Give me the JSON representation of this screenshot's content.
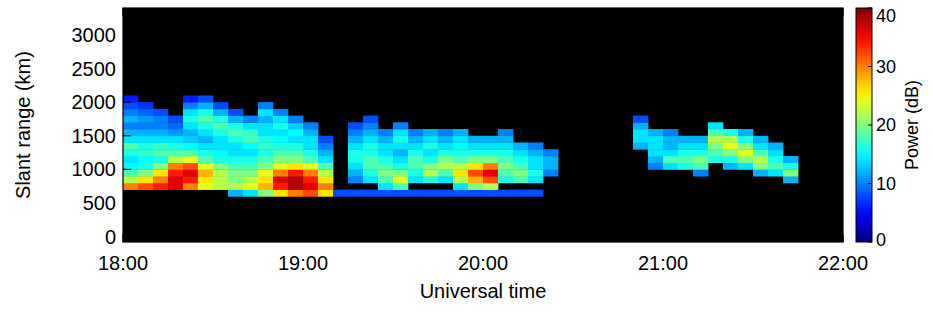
{
  "chart_data": {
    "type": "heatmap",
    "xlabel": "Universal time",
    "ylabel": "Slant range (km)",
    "zlabel": "Power (dB)",
    "xlim": [
      1080,
      1320
    ],
    "xticks": [
      {
        "value": 1080,
        "label": "18:00"
      },
      {
        "value": 1140,
        "label": "19:00"
      },
      {
        "value": 1200,
        "label": "20:00"
      },
      {
        "value": 1260,
        "label": "21:00"
      },
      {
        "value": 1320,
        "label": "22:00"
      }
    ],
    "ylim": [
      -80,
      3400
    ],
    "yticks": [
      0,
      500,
      1000,
      1500,
      2000,
      2500,
      3000
    ],
    "zlim": [
      0,
      40
    ],
    "zticks": [
      0,
      10,
      20,
      30,
      40
    ],
    "x_edges": [
      1080,
      1085,
      1090,
      1095,
      1100,
      1105,
      1110,
      1115,
      1120,
      1125,
      1130,
      1135,
      1140,
      1145,
      1150,
      1155,
      1160,
      1165,
      1170,
      1175,
      1180,
      1185,
      1190,
      1195,
      1200,
      1205,
      1210,
      1215,
      1220,
      1225,
      1230,
      1235,
      1240,
      1245,
      1250,
      1255,
      1260,
      1265,
      1270,
      1275,
      1280,
      1285,
      1290,
      1295,
      1300,
      1305,
      1310,
      1315,
      1320
    ],
    "y_edges": [
      200,
      300,
      400,
      500,
      600,
      700,
      800,
      900,
      1000,
      1100,
      1200,
      1300,
      1400,
      1500,
      1600,
      1700,
      1800,
      1900,
      2000,
      2100,
      2200,
      2300
    ],
    "z": [
      [
        null,
        null,
        null,
        null,
        null,
        30,
        22,
        18,
        15,
        14,
        16,
        18,
        14,
        12,
        10,
        12,
        10,
        8,
        6,
        null,
        null
      ],
      [
        null,
        null,
        null,
        null,
        null,
        32,
        26,
        20,
        16,
        15,
        17,
        16,
        14,
        12,
        10,
        11,
        9,
        7,
        null,
        null,
        null
      ],
      [
        null,
        null,
        null,
        null,
        null,
        34,
        30,
        26,
        20,
        16,
        18,
        17,
        14,
        12,
        10,
        10,
        8,
        null,
        null,
        null,
        null
      ],
      [
        null,
        null,
        null,
        null,
        null,
        36,
        36,
        34,
        30,
        22,
        18,
        16,
        14,
        11,
        9,
        8,
        null,
        null,
        null,
        null,
        null
      ],
      [
        null,
        null,
        null,
        null,
        null,
        30,
        34,
        36,
        32,
        24,
        18,
        15,
        13,
        12,
        14,
        16,
        14,
        10,
        6,
        null,
        null
      ],
      [
        null,
        null,
        null,
        null,
        null,
        24,
        26,
        28,
        24,
        18,
        16,
        14,
        12,
        14,
        16,
        18,
        16,
        12,
        8,
        null,
        null
      ],
      [
        null,
        null,
        null,
        null,
        null,
        22,
        22,
        22,
        20,
        16,
        15,
        14,
        14,
        16,
        18,
        16,
        12,
        8,
        null,
        null,
        null
      ],
      [
        null,
        null,
        null,
        null,
        12,
        22,
        20,
        20,
        18,
        16,
        14,
        14,
        16,
        18,
        16,
        12,
        8,
        null,
        null,
        null,
        null
      ],
      [
        null,
        null,
        null,
        null,
        14,
        24,
        22,
        20,
        18,
        16,
        14,
        15,
        18,
        17,
        14,
        10,
        null,
        null,
        null,
        null,
        null
      ],
      [
        null,
        null,
        null,
        null,
        20,
        28,
        26,
        24,
        20,
        18,
        16,
        17,
        16,
        14,
        14,
        12,
        14,
        10,
        null,
        null,
        null
      ],
      [
        null,
        null,
        null,
        null,
        26,
        34,
        36,
        30,
        24,
        20,
        18,
        16,
        15,
        14,
        16,
        14,
        10,
        null,
        null,
        null,
        null
      ],
      [
        null,
        null,
        null,
        null,
        30,
        38,
        38,
        34,
        26,
        20,
        18,
        16,
        14,
        15,
        13,
        10,
        null,
        null,
        null,
        null,
        null
      ],
      [
        null,
        null,
        null,
        null,
        32,
        36,
        34,
        30,
        24,
        18,
        16,
        14,
        14,
        12,
        10,
        null,
        null,
        null,
        null,
        null,
        null
      ],
      [
        null,
        null,
        null,
        null,
        26,
        30,
        26,
        22,
        18,
        14,
        12,
        10,
        8,
        null,
        null,
        null,
        null,
        null,
        null,
        null,
        null
      ],
      [
        null,
        null,
        null,
        null,
        8,
        null,
        null,
        null,
        null,
        null,
        null,
        null,
        null,
        null,
        null,
        null,
        null,
        null,
        null,
        null,
        null
      ],
      [
        null,
        null,
        null,
        null,
        8,
        null,
        10,
        12,
        14,
        16,
        16,
        14,
        12,
        10,
        8,
        null,
        null,
        null,
        null,
        null,
        null
      ],
      [
        null,
        null,
        null,
        null,
        8,
        null,
        14,
        16,
        18,
        18,
        16,
        16,
        14,
        12,
        10,
        8,
        null,
        null,
        null,
        null,
        null
      ],
      [
        null,
        null,
        null,
        null,
        8,
        14,
        18,
        20,
        18,
        16,
        14,
        14,
        12,
        10,
        null,
        null,
        null,
        null,
        null,
        null,
        null
      ],
      [
        null,
        null,
        null,
        null,
        8,
        18,
        24,
        20,
        16,
        14,
        12,
        14,
        16,
        14,
        10,
        null,
        null,
        null,
        null,
        null,
        null
      ],
      [
        null,
        null,
        null,
        null,
        8,
        null,
        14,
        16,
        18,
        18,
        16,
        14,
        12,
        10,
        null,
        null,
        null,
        null,
        null,
        null,
        null
      ],
      [
        null,
        null,
        null,
        null,
        8,
        null,
        16,
        22,
        20,
        16,
        14,
        16,
        14,
        12,
        null,
        null,
        null,
        null,
        null,
        null,
        null
      ],
      [
        null,
        null,
        null,
        null,
        8,
        null,
        14,
        18,
        22,
        20,
        16,
        14,
        12,
        10,
        null,
        null,
        null,
        null,
        null,
        null,
        null
      ],
      [
        null,
        null,
        null,
        null,
        8,
        14,
        22,
        26,
        22,
        18,
        16,
        15,
        14,
        12,
        null,
        null,
        null,
        null,
        null,
        null,
        null
      ],
      [
        null,
        null,
        null,
        null,
        8,
        20,
        28,
        32,
        26,
        20,
        16,
        14,
        12,
        null,
        null,
        null,
        null,
        null,
        null,
        null,
        null
      ],
      [
        null,
        null,
        null,
        null,
        8,
        22,
        32,
        36,
        30,
        20,
        16,
        14,
        12,
        null,
        null,
        null,
        null,
        null,
        null,
        null,
        null
      ],
      [
        null,
        null,
        null,
        null,
        8,
        null,
        16,
        18,
        20,
        18,
        16,
        14,
        12,
        10,
        null,
        null,
        null,
        null,
        null,
        null,
        null
      ],
      [
        null,
        null,
        null,
        null,
        8,
        null,
        18,
        20,
        18,
        16,
        14,
        12,
        null,
        null,
        null,
        null,
        null,
        null,
        null,
        null,
        null
      ],
      [
        null,
        null,
        null,
        null,
        8,
        null,
        14,
        16,
        14,
        14,
        12,
        10,
        null,
        null,
        null,
        null,
        null,
        null,
        null,
        null,
        null
      ],
      [
        null,
        null,
        null,
        null,
        null,
        null,
        null,
        10,
        12,
        12,
        10,
        null,
        null,
        null,
        null,
        null,
        null,
        null,
        null,
        null,
        null
      ],
      [
        null,
        null,
        null,
        null,
        null,
        null,
        null,
        null,
        null,
        null,
        null,
        null,
        null,
        null,
        null,
        null,
        null,
        null,
        null,
        null,
        null
      ],
      [
        null,
        null,
        null,
        null,
        null,
        null,
        null,
        null,
        null,
        null,
        null,
        null,
        null,
        null,
        null,
        null,
        null,
        null,
        null,
        null,
        null
      ],
      [
        null,
        null,
        null,
        null,
        null,
        null,
        null,
        null,
        null,
        null,
        null,
        null,
        null,
        null,
        null,
        null,
        null,
        null,
        null,
        null,
        null
      ],
      [
        null,
        null,
        null,
        null,
        null,
        null,
        null,
        null,
        null,
        null,
        null,
        null,
        null,
        null,
        null,
        null,
        null,
        null,
        null,
        null,
        null
      ],
      [
        null,
        null,
        null,
        null,
        null,
        null,
        null,
        null,
        null,
        null,
        null,
        null,
        null,
        null,
        null,
        null,
        null,
        null,
        null,
        null,
        null
      ],
      [
        null,
        null,
        null,
        null,
        null,
        null,
        null,
        null,
        null,
        null,
        null,
        12,
        14,
        14,
        12,
        8,
        null,
        null,
        null,
        null,
        null
      ],
      [
        null,
        null,
        null,
        null,
        null,
        null,
        null,
        null,
        10,
        12,
        14,
        14,
        14,
        12,
        null,
        null,
        null,
        null,
        null,
        null,
        null
      ],
      [
        null,
        null,
        null,
        null,
        null,
        null,
        null,
        null,
        14,
        18,
        14,
        12,
        12,
        10,
        null,
        null,
        null,
        null,
        null,
        null,
        null
      ],
      [
        null,
        null,
        null,
        null,
        null,
        null,
        null,
        null,
        16,
        18,
        16,
        14,
        12,
        null,
        null,
        null,
        null,
        null,
        null,
        null,
        null
      ],
      [
        null,
        null,
        null,
        null,
        null,
        null,
        null,
        10,
        18,
        20,
        16,
        14,
        12,
        null,
        null,
        null,
        null,
        null,
        null,
        null,
        null
      ],
      [
        null,
        null,
        null,
        null,
        null,
        null,
        null,
        null,
        null,
        16,
        18,
        20,
        22,
        18,
        14,
        null,
        null,
        null,
        null,
        null,
        null
      ],
      [
        null,
        null,
        null,
        null,
        null,
        null,
        null,
        null,
        12,
        16,
        20,
        24,
        22,
        16,
        null,
        null,
        null,
        null,
        null,
        null,
        null
      ],
      [
        null,
        null,
        null,
        null,
        null,
        null,
        null,
        null,
        14,
        20,
        24,
        20,
        16,
        12,
        null,
        null,
        null,
        null,
        null,
        null,
        null
      ],
      [
        null,
        null,
        null,
        null,
        null,
        null,
        null,
        12,
        20,
        22,
        18,
        14,
        12,
        null,
        null,
        null,
        null,
        null,
        null,
        null,
        null
      ],
      [
        null,
        null,
        null,
        null,
        null,
        null,
        null,
        14,
        18,
        16,
        14,
        12,
        null,
        null,
        null,
        null,
        null,
        null,
        null,
        null,
        null
      ],
      [
        null,
        null,
        null,
        null,
        null,
        null,
        12,
        20,
        16,
        12,
        null,
        null,
        null,
        null,
        null,
        null,
        null,
        null,
        null,
        null,
        null
      ],
      [
        null,
        null,
        null,
        null,
        null,
        null,
        null,
        null,
        null,
        null,
        null,
        null,
        null,
        null,
        null,
        null,
        null,
        null,
        null,
        null,
        null
      ],
      [
        null,
        null,
        null,
        null,
        null,
        null,
        null,
        null,
        null,
        null,
        null,
        null,
        null,
        null,
        null,
        null,
        null,
        null,
        null,
        null,
        null
      ],
      [
        null,
        null,
        null,
        null,
        null,
        null,
        null,
        null,
        null,
        null,
        null,
        null,
        null,
        null,
        null,
        null,
        null,
        null,
        null,
        null,
        null
      ]
    ]
  }
}
